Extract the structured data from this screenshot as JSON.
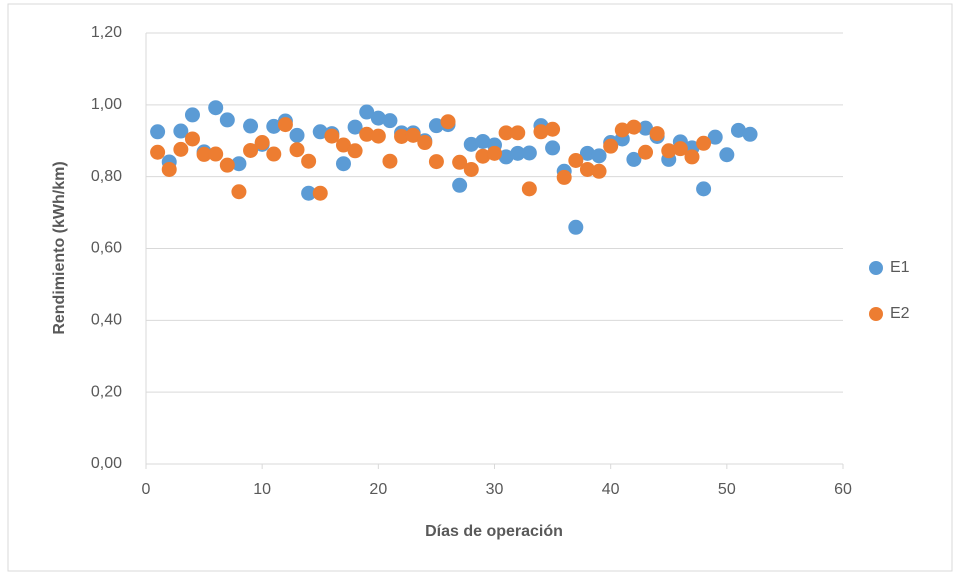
{
  "chart_data": {
    "type": "scatter",
    "xlabel": "Días de operación",
    "ylabel": "Rendimiento (kWh/km)",
    "xlim": [
      0,
      60
    ],
    "xticks": [
      0,
      10,
      20,
      30,
      40,
      50,
      60
    ],
    "ylim": [
      0,
      1.2
    ],
    "yticks": [
      {
        "value": 0,
        "label": "0,00"
      },
      {
        "value": 0.2,
        "label": "0,20"
      },
      {
        "value": 0.4,
        "label": "0,40"
      },
      {
        "value": 0.6,
        "label": "0,60"
      },
      {
        "value": 0.8,
        "label": "0,80"
      },
      {
        "value": 1.0,
        "label": "1,00"
      },
      {
        "value": 1.2,
        "label": "1,20"
      }
    ],
    "grid": true,
    "legend": "right",
    "series": [
      {
        "name": "E1",
        "color": "#5b9bd5",
        "x": [
          1,
          2,
          3,
          4,
          5,
          6,
          7,
          8,
          9,
          10,
          11,
          12,
          13,
          14,
          15,
          16,
          17,
          18,
          19,
          20,
          21,
          22,
          23,
          24,
          25,
          26,
          27,
          28,
          29,
          30,
          31,
          32,
          33,
          34,
          35,
          36,
          37,
          38,
          39,
          40,
          41,
          42,
          43,
          44,
          45,
          46,
          47,
          48,
          49,
          50,
          51,
          52
        ],
        "values": [
          0.925,
          0.841,
          0.927,
          0.972,
          0.869,
          0.992,
          0.958,
          0.836,
          0.941,
          0.89,
          0.94,
          0.955,
          0.915,
          0.754,
          0.925,
          0.92,
          0.836,
          0.938,
          0.98,
          0.963,
          0.956,
          0.922,
          0.922,
          0.9,
          0.942,
          0.945,
          0.776,
          0.89,
          0.898,
          0.888,
          0.855,
          0.865,
          0.866,
          0.942,
          0.88,
          0.815,
          0.659,
          0.865,
          0.858,
          0.895,
          0.905,
          0.848,
          0.935,
          0.912,
          0.848,
          0.897,
          0.88,
          0.766,
          0.91,
          0.861,
          0.929,
          0.918
        ]
      },
      {
        "name": "E2",
        "color": "#ed7d31",
        "x": [
          1,
          2,
          3,
          4,
          5,
          6,
          7,
          8,
          9,
          10,
          11,
          12,
          13,
          14,
          15,
          16,
          17,
          18,
          19,
          20,
          21,
          22,
          23,
          24,
          25,
          26,
          27,
          28,
          29,
          30,
          31,
          32,
          33,
          34,
          35,
          36,
          37,
          38,
          39,
          40,
          41,
          42,
          43,
          44,
          45,
          46,
          47,
          48
        ],
        "values": [
          0.868,
          0.82,
          0.876,
          0.905,
          0.862,
          0.863,
          0.832,
          0.758,
          0.873,
          0.895,
          0.863,
          0.945,
          0.875,
          0.843,
          0.754,
          0.913,
          0.888,
          0.872,
          0.918,
          0.913,
          0.843,
          0.912,
          0.915,
          0.895,
          0.842,
          0.953,
          0.84,
          0.82,
          0.857,
          0.865,
          0.922,
          0.922,
          0.766,
          0.925,
          0.932,
          0.798,
          0.845,
          0.82,
          0.815,
          0.885,
          0.93,
          0.938,
          0.868,
          0.92,
          0.872,
          0.878,
          0.855,
          0.893
        ]
      }
    ]
  }
}
